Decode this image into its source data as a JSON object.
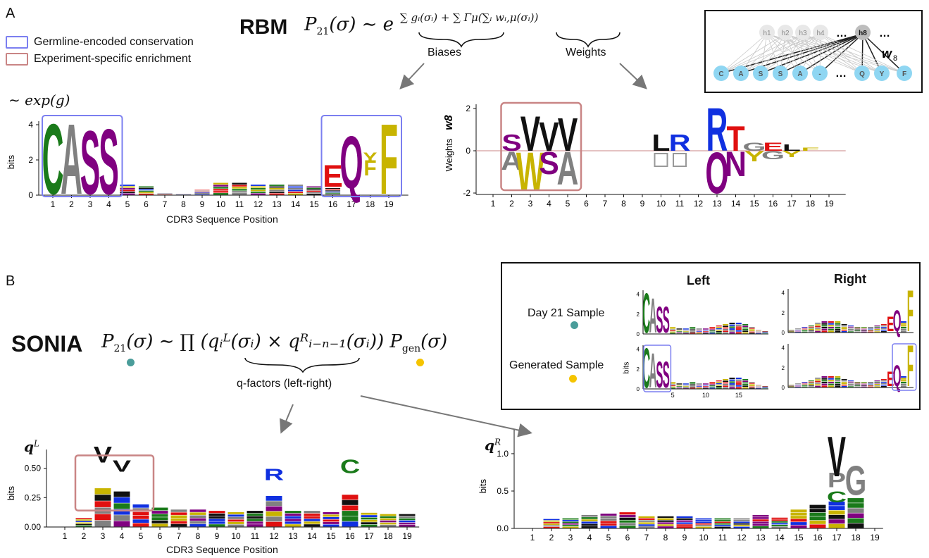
{
  "panel_a": {
    "letter": "A",
    "legend": [
      {
        "label": "Germline-encoded conservation",
        "color": "#7b7ff0"
      },
      {
        "label": "Experiment-specific enrichment",
        "color": "#c98585"
      }
    ],
    "model_name": "RBM",
    "equation_lhs": "P",
    "equation_rest": "(σ) ∼ e",
    "equation_exp": "∑ gᵢ(σᵢ) + ∑ Γμ(∑ᵢ wᵢ,μ(σᵢ))",
    "biases_label": "Biases",
    "weights_label": "Weights",
    "bias_ylabel_math": "∼ exp(g)",
    "bias_ylabel": "bits",
    "bias_xlabel": "CDR3 Sequence Position",
    "weights_ylabel_math": "w",
    "weights_ylabel_sub": "8",
    "weights_ylabel": "Weights",
    "network": {
      "hidden": [
        "h1",
        "h2",
        "h3",
        "h4",
        "…",
        "h8",
        "…"
      ],
      "visible": [
        "C",
        "A",
        "S",
        "S",
        "A",
        "-",
        "…",
        "Q",
        "Y",
        "F"
      ],
      "weight_label": "w",
      "weight_sub": "8"
    },
    "bias_yticks": [
      "0",
      "2",
      "4"
    ],
    "weights_yticks": [
      "-2",
      "0",
      "2"
    ]
  },
  "panel_b": {
    "letter": "B",
    "model_name": "SONIA",
    "equation": "(σ) ∼ ∏ (qᵢᴸ(σᵢ) × qᴿᵢ₋ₙ₋₁(σᵢ)) P",
    "gen_sub": "gen",
    "q_factors_label": "q-factors (left-right)",
    "inset": {
      "left_title": "Left",
      "right_title": "Right",
      "day21_label": "Day 21 Sample",
      "generated_label": "Generated Sample",
      "day21_color": "#4a9d9a",
      "generated_color": "#f5c400",
      "ylabel": "bits",
      "xticks": [
        "5",
        "10",
        "15"
      ],
      "yticks": [
        "0",
        "2",
        "4"
      ]
    },
    "ql_label": "q",
    "ql_sup": "L",
    "ql_ylabel": "bits",
    "ql_xlabel": "CDR3 Sequence Position",
    "ql_yticks": [
      "0.00",
      "0.25",
      "0.50"
    ],
    "qr_label": "q",
    "qr_sup": "R",
    "qr_ylabel": "bits",
    "qr_yticks": [
      "0.0",
      "0.5",
      "1.0"
    ]
  },
  "positions": [
    "1",
    "2",
    "3",
    "4",
    "5",
    "6",
    "7",
    "8",
    "9",
    "10",
    "11",
    "12",
    "13",
    "14",
    "15",
    "16",
    "17",
    "18",
    "19"
  ],
  "aa_colors": {
    "C": "#1a7a1a",
    "A": "#808080",
    "S": "#800080",
    "Q": "#800080",
    "E": "#e01010",
    "Y": "#c8b400",
    "F": "#c8b400",
    "V": "#111111",
    "W": "#c8b400",
    "R": "#1030e0",
    "T": "#800080",
    "N": "#800080",
    "G": "#808080",
    "L": "#111111",
    "P": "#808080"
  }
}
